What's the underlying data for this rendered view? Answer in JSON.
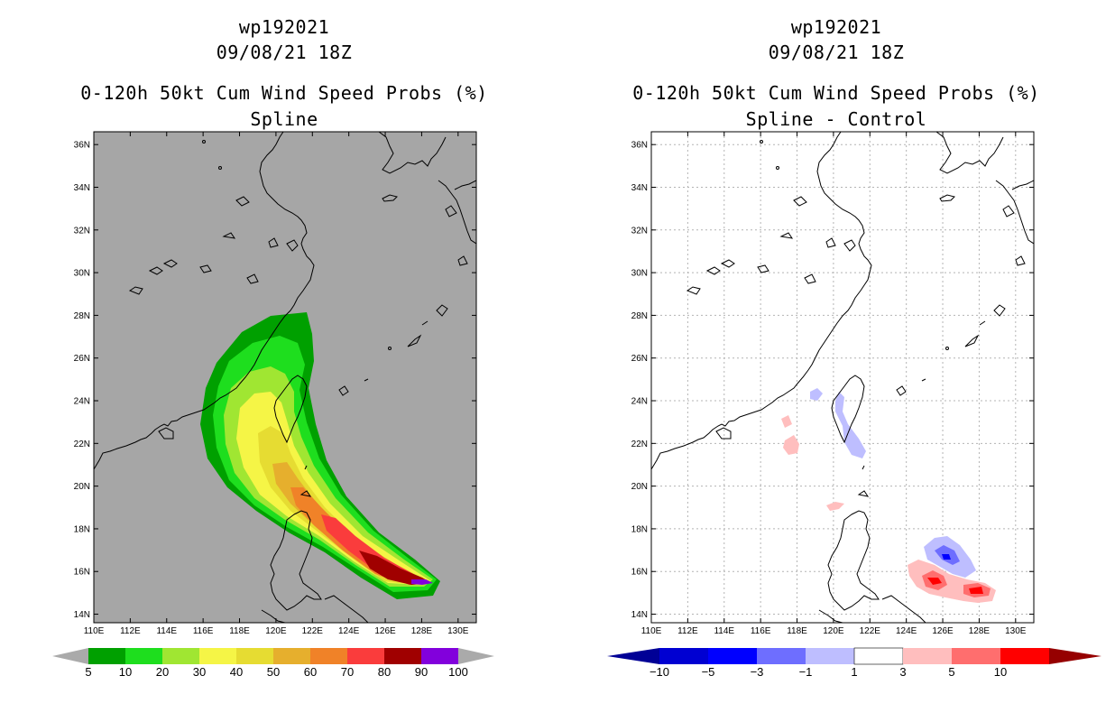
{
  "left_panel": {
    "title_line1": "wp192021",
    "title_line2": "09/08/21 18Z",
    "title_line3": "0-120h 50kt Cum Wind Speed Probs (%)",
    "title_line4": "Spline",
    "background_color": "#a6a6a6"
  },
  "right_panel": {
    "title_line1": "wp192021",
    "title_line2": "09/08/21 18Z",
    "title_line3": "0-120h 50kt Cum Wind Speed Probs (%)",
    "title_line4": "Spline - Control",
    "background_color": "#ffffff"
  },
  "axes": {
    "lon_ticks": [
      "110E",
      "112E",
      "114E",
      "116E",
      "118E",
      "120E",
      "122E",
      "124E",
      "126E",
      "128E",
      "130E"
    ],
    "lat_ticks": [
      "14N",
      "16N",
      "18N",
      "20N",
      "22N",
      "24N",
      "26N",
      "28N",
      "30N",
      "32N",
      "34N",
      "36N"
    ],
    "lon_range": [
      110,
      131
    ],
    "lat_range": [
      13.6,
      36.6
    ]
  },
  "left_colorbar": {
    "labels": [
      "5",
      "10",
      "20",
      "30",
      "40",
      "50",
      "60",
      "70",
      "80",
      "90",
      "100"
    ],
    "colors": [
      "#00a000",
      "#1ede1e",
      "#a0e632",
      "#f5f546",
      "#e6dc32",
      "#e6af2d",
      "#f08228",
      "#fa3c3c",
      "#a00000",
      "#8200dc"
    ],
    "end_color": "#aaaaaa"
  },
  "right_colorbar": {
    "labels": [
      "−10",
      "−5",
      "−3",
      "−1",
      "1",
      "3",
      "5",
      "10"
    ],
    "colors": [
      "#0000d2",
      "#0000ff",
      "#6e6eff",
      "#bebeff",
      "#ffffff",
      "#ffbebe",
      "#ff6e6e",
      "#ff0000"
    ],
    "under_color": "#000096",
    "over_color": "#960000"
  }
}
